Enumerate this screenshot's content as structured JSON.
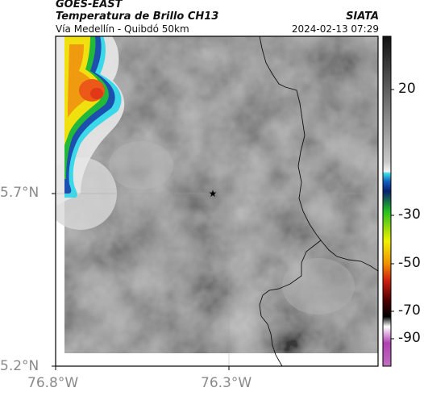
{
  "header": {
    "satellite": "GOES-EAST",
    "product": "Temperatura de Brillo CH13",
    "region": "Vía Medellín - Quibdó 50km",
    "organization": "SIATA",
    "datetime": "2024-02-13 07:29"
  },
  "axes": {
    "lat_ticks": [
      "5.7°N",
      "5.2°N"
    ],
    "lon_ticks": [
      "76.8°W",
      "76.3°W"
    ]
  },
  "colorbar": {
    "ticks": [
      "20",
      "-30",
      "-50",
      "-70",
      "-90"
    ]
  },
  "marker": {
    "symbol": "★"
  },
  "colors": {
    "map_gray": "#7f7f7f",
    "cold_cloud_core": "#f05018",
    "cloud_edge_cyan": "#20d0e0",
    "border_line": "#111111"
  }
}
